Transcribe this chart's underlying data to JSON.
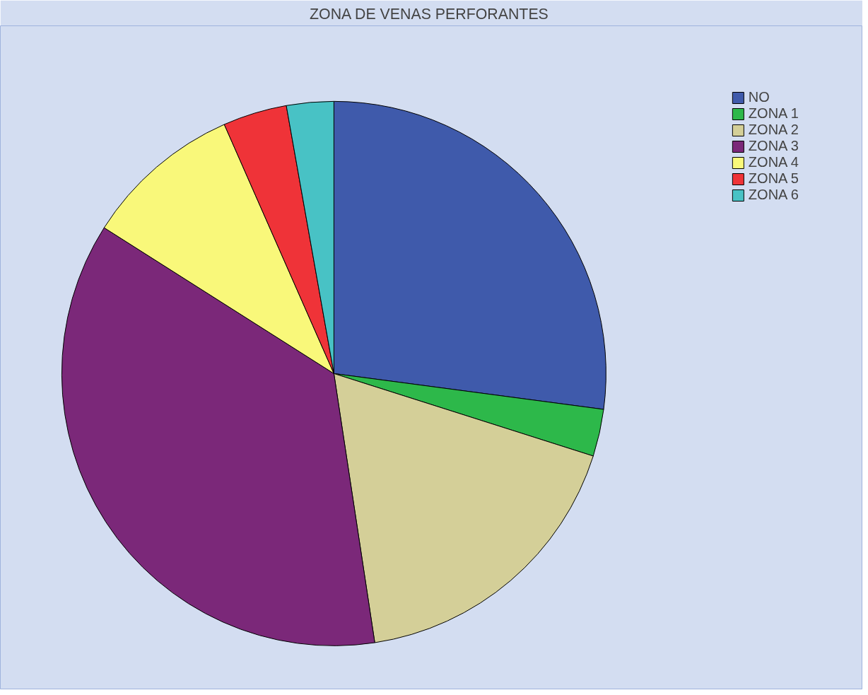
{
  "chart_data": {
    "type": "pie",
    "title": "ZONA DE VENAS  PERFORANTES",
    "categories": [
      "NO",
      "ZONA 1",
      "ZONA 2",
      "ZONA 3",
      "ZONA 4",
      "ZONA 5",
      "ZONA 6"
    ],
    "values": [
      27.1,
      2.8,
      17.7,
      36.4,
      9.4,
      3.8,
      2.8
    ],
    "colors": [
      "#3f5aab",
      "#2db84a",
      "#d4cf98",
      "#7b2879",
      "#f9f87a",
      "#ef3338",
      "#48c2c5"
    ],
    "legend": "top right"
  }
}
